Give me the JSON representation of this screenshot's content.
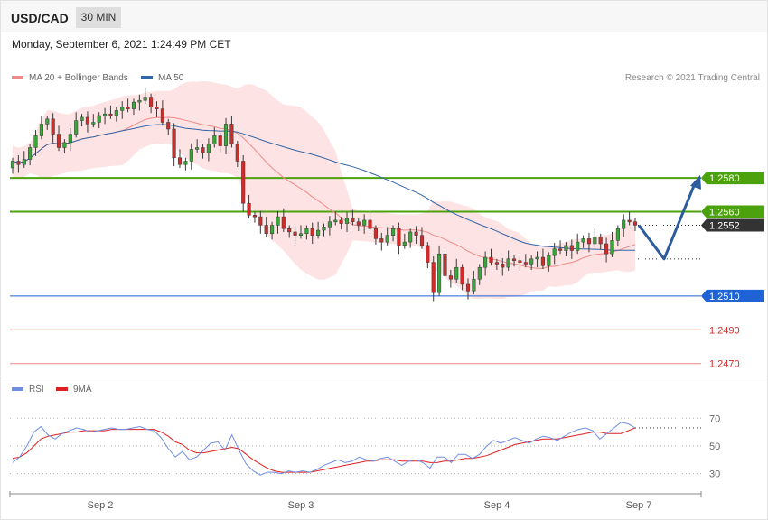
{
  "header": {
    "symbol": "USD/CAD",
    "timeframe": "30 MIN"
  },
  "datetime": "Monday, September 6, 2021 1:24:49 PM CET",
  "credit": "Research © 2021 Trading Central",
  "colors": {
    "up": "#38a63a",
    "down": "#d32a2a",
    "ma20": "#f08a8a",
    "ma50": "#3465a4",
    "bands": "#fde3e3",
    "resistance": "#4ba20d",
    "current": "#333333",
    "support": "#1f63d6",
    "support_weak": "#d32a2a",
    "rsi": "#6f8fe0",
    "rsi_ma": "#e02020",
    "arrow": "#2c5c9c"
  },
  "chart_data": [
    {
      "type": "candlestick",
      "legend": [
        {
          "label": "MA 20 + Bollinger Bands",
          "color": "#f08a8a"
        },
        {
          "label": "MA 50",
          "color": "#3465a4"
        }
      ],
      "legend_position": "top-left",
      "ylim": [
        1.2465,
        1.2632
      ],
      "x_labels": [
        "Sep 2",
        "Sep 3",
        "Sep 4",
        "Sep 7"
      ],
      "levels": [
        {
          "value": 1.258,
          "label": "1.2580",
          "kind": "resistance"
        },
        {
          "value": 1.256,
          "label": "1.2560",
          "kind": "resistance"
        },
        {
          "value": 1.2552,
          "label": "1.2552",
          "kind": "current"
        },
        {
          "value": 1.251,
          "label": "1.2510",
          "kind": "support"
        },
        {
          "value": 1.249,
          "label": "1.2490",
          "kind": "support_weak"
        },
        {
          "value": 1.247,
          "label": "1.2470",
          "kind": "support_weak"
        }
      ],
      "forecast_path": [
        1.2552,
        1.2532,
        1.2578
      ],
      "close": [
        1.259,
        1.2588,
        1.2591,
        1.2598,
        1.2605,
        1.2612,
        1.2615,
        1.2606,
        1.2598,
        1.2601,
        1.2606,
        1.2614,
        1.2616,
        1.2612,
        1.2613,
        1.2617,
        1.2618,
        1.2617,
        1.262,
        1.2622,
        1.2621,
        1.2625,
        1.2626,
        1.2628,
        1.2622,
        1.2621,
        1.2613,
        1.2609,
        1.2592,
        1.2588,
        1.259,
        1.2597,
        1.2598,
        1.2595,
        1.26,
        1.2605,
        1.2599,
        1.2612,
        1.26,
        1.259,
        1.2565,
        1.2558,
        1.2557,
        1.2552,
        1.2547,
        1.2552,
        1.2557,
        1.255,
        1.2548,
        1.2546,
        1.2547,
        1.255,
        1.2546,
        1.2549,
        1.2551,
        1.2554,
        1.2555,
        1.2553,
        1.2556,
        1.2554,
        1.2552,
        1.2555,
        1.255,
        1.2544,
        1.2542,
        1.2546,
        1.255,
        1.254,
        1.2542,
        1.2548,
        1.2546,
        1.254,
        1.253,
        1.2512,
        1.2535,
        1.2522,
        1.252,
        1.2527,
        1.2517,
        1.2513,
        1.252,
        1.2527,
        1.2533,
        1.253,
        1.2529,
        1.2527,
        1.2532,
        1.2531,
        1.253,
        1.2529,
        1.2532,
        1.2533,
        1.2528,
        1.2534,
        1.2538,
        1.2537,
        1.254,
        1.2537,
        1.2542,
        1.2544,
        1.2541,
        1.2545,
        1.2541,
        1.2535,
        1.2543,
        1.255,
        1.2555,
        1.2554,
        1.2552
      ]
    },
    {
      "type": "line",
      "legend": [
        {
          "label": "RSI",
          "color": "#6f8fe0"
        },
        {
          "label": "9MA",
          "color": "#e02020"
        }
      ],
      "ylim": [
        20,
        78
      ],
      "y_ticks": [
        70,
        50,
        30
      ],
      "series": [
        {
          "name": "RSI",
          "values": [
            38,
            42,
            50,
            60,
            64,
            58,
            55,
            59,
            61,
            63,
            62,
            60,
            61,
            62,
            63,
            62,
            62,
            63,
            64,
            62,
            61,
            56,
            48,
            42,
            46,
            40,
            42,
            47,
            52,
            53,
            47,
            58,
            47,
            37,
            32,
            29,
            31,
            31,
            30,
            32,
            31,
            32,
            31,
            33,
            36,
            38,
            40,
            38,
            39,
            42,
            40,
            39,
            41,
            42,
            39,
            36,
            39,
            40,
            38,
            34,
            42,
            42,
            38,
            44,
            44,
            41,
            44,
            50,
            54,
            52,
            54,
            56,
            54,
            52,
            55,
            57,
            56,
            54,
            57,
            60,
            62,
            63,
            61,
            55,
            59,
            63,
            67,
            66,
            63
          ]
        },
        {
          "name": "9MA",
          "values": [
            41,
            42,
            45,
            50,
            55,
            57,
            58,
            59,
            60,
            60,
            61,
            61,
            61,
            61,
            62,
            62,
            62,
            62,
            62,
            62,
            62,
            60,
            57,
            53,
            51,
            47,
            45,
            45,
            46,
            47,
            48,
            49,
            48,
            44,
            40,
            37,
            34,
            32,
            31,
            31,
            31,
            31,
            31,
            32,
            33,
            34,
            35,
            36,
            37,
            38,
            39,
            39,
            40,
            40,
            40,
            39,
            39,
            39,
            39,
            38,
            38,
            39,
            39,
            40,
            41,
            41,
            42,
            43,
            45,
            47,
            49,
            51,
            52,
            53,
            54,
            55,
            55,
            55,
            56,
            57,
            58,
            59,
            60,
            60,
            59,
            59,
            59,
            61,
            63
          ]
        }
      ]
    }
  ]
}
